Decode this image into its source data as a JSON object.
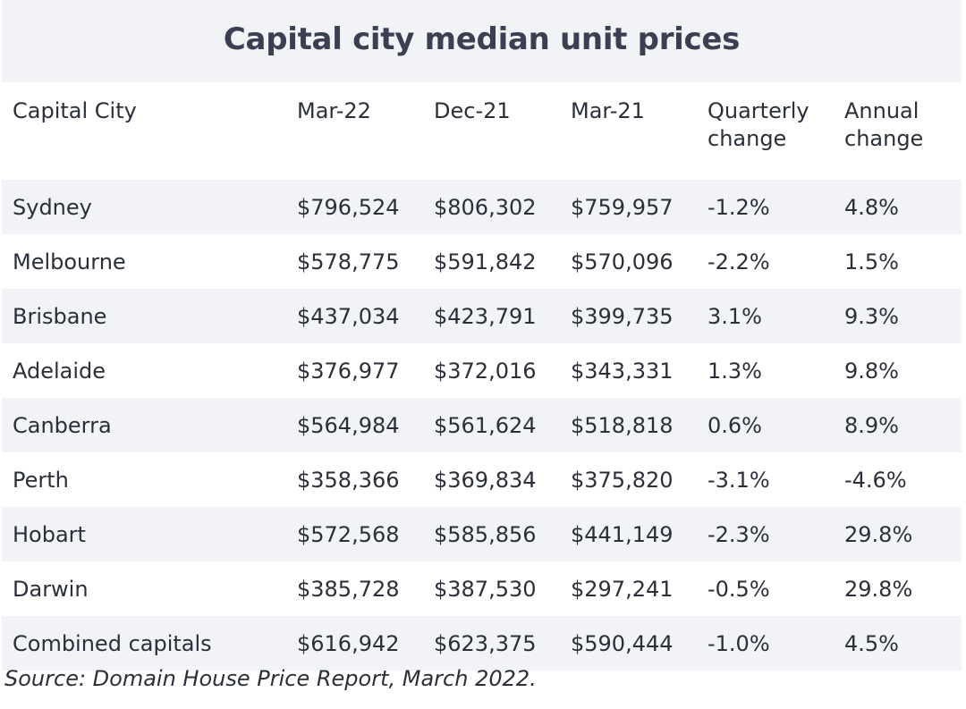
{
  "title": "Capital city median unit prices",
  "headers": [
    "Capital City",
    "Mar-22",
    "Dec-21",
    "Mar-21",
    "Quarterly change",
    "Annual change"
  ],
  "rows": [
    [
      "Sydney",
      "$796,524",
      "$806,302",
      "$759,957",
      "-1.2%",
      "4.8%"
    ],
    [
      "Melbourne",
      "$578,775",
      "$591,842",
      "$570,096",
      "-2.2%",
      "1.5%"
    ],
    [
      "Brisbane",
      "$437,034",
      "$423,791",
      "$399,735",
      "3.1%",
      "9.3%"
    ],
    [
      "Adelaide",
      "$376,977",
      "$372,016",
      "$343,331",
      "1.3%",
      "9.8%"
    ],
    [
      "Canberra",
      "$564,984",
      "$561,624",
      "$518,818",
      "0.6%",
      "8.9%"
    ],
    [
      "Perth",
      "$358,366",
      "$369,834",
      "$375,820",
      "-3.1%",
      "-4.6%"
    ],
    [
      "Hobart",
      "$572,568",
      "$585,856",
      "$441,149",
      "-2.3%",
      "29.8%"
    ],
    [
      "Darwin",
      "$385,728",
      "$387,530",
      "$297,241",
      "-0.5%",
      "29.8%"
    ],
    [
      "Combined capitals",
      "$616,942",
      "$623,375",
      "$590,444",
      "-1.0%",
      "4.5%"
    ]
  ],
  "source": "Source: Domain House Price Report, March 2022.",
  "colors": {
    "stripe": "#f1f3f6",
    "title_text": "#3a3f52",
    "body_text": "#2b2f3a"
  }
}
